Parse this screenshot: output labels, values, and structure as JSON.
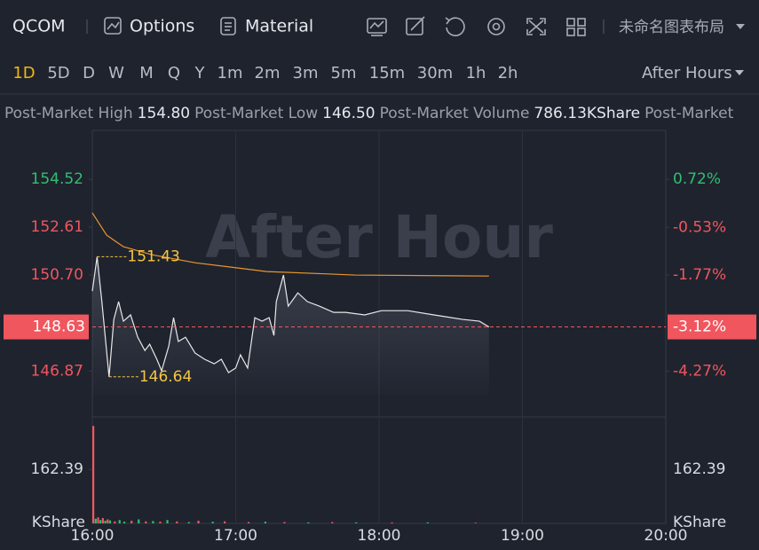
{
  "toolbar": {
    "symbol": "QCOM",
    "options": "Options",
    "material": "Material",
    "layout": "未命名图表布局"
  },
  "timeframes": {
    "items": [
      "1D",
      "5D",
      "D",
      "W",
      "M",
      "Q",
      "Y",
      "1m",
      "2m",
      "3m",
      "5m",
      "15m",
      "30m",
      "1h",
      "2h"
    ],
    "active": "1D",
    "session": "After Hours"
  },
  "stats": [
    {
      "label": "Post-Market High",
      "value": "154.80"
    },
    {
      "label": "Post-Market Low",
      "value": "146.50"
    },
    {
      "label": "Post-Market Volume",
      "value": "786.13KShare"
    },
    {
      "label": "Post-Market"
    }
  ],
  "chart_data": {
    "type": "line",
    "watermark": "After Hour",
    "xlim": [
      "16:00",
      "20:00"
    ],
    "xticks": [
      "16:00",
      "17:00",
      "18:00",
      "19:00",
      "20:00"
    ],
    "ylim": [
      145.04,
      156.47
    ],
    "yticks": [
      {
        "value": 146.87,
        "label": "146.87"
      },
      {
        "value": 150.7,
        "label": "150.70"
      },
      152.61,
      154.52
    ],
    "y2lim": [
      -5.46,
      1.99
    ],
    "y2ticks": [
      {
        "value": -4.27,
        "label": "-4.27%"
      },
      {
        "value": -1.77,
        "label": "-1.77%"
      },
      {
        "value": -0.53,
        "label": "-0.53%"
      },
      {
        "value": 0.72,
        "label": "0.72%"
      }
    ],
    "last_price": {
      "value": 148.63,
      "label": "148.63"
    },
    "last_change": {
      "value": -3.12,
      "label": "-3.12%"
    },
    "up_color": "#2fbf71",
    "down_color": "#f0565e",
    "grid": true,
    "series": [
      {
        "color": "#e8e8e8",
        "area": true,
        "x": [
          "16:00",
          "16:02",
          "16:04",
          "16:07",
          "16:09",
          "16:11",
          "16:13",
          "16:16",
          "16:19",
          "16:22",
          "16:24",
          "16:27",
          "16:29",
          "16:32",
          "16:34",
          "16:36",
          "16:39",
          "16:43",
          "16:47",
          "16:51",
          "16:54",
          "16:57",
          "17:00",
          "17:02",
          "17:05",
          "17:08",
          "17:11",
          "17:14",
          "17:16",
          "17:17",
          "17:20",
          "17:22",
          "17:26",
          "17:30",
          "17:35",
          "17:41",
          "17:46",
          "17:54",
          "18:01",
          "18:12",
          "18:23",
          "18:35",
          "18:42",
          "18:46"
        ],
        "values": [
          150.06,
          151.43,
          149.64,
          146.64,
          148.93,
          149.64,
          148.86,
          149.11,
          148.22,
          147.69,
          147.94,
          147.34,
          146.88,
          147.87,
          149.0,
          148.05,
          148.22,
          147.59,
          147.34,
          147.16,
          147.34,
          146.81,
          146.99,
          147.52,
          146.99,
          149.0,
          148.86,
          149.0,
          148.29,
          149.64,
          150.7,
          149.46,
          149.99,
          149.64,
          149.46,
          149.21,
          149.21,
          149.11,
          149.28,
          149.28,
          149.11,
          148.93,
          148.86,
          148.63
        ]
      },
      {
        "color": "#e8962e",
        "x": [
          "16:00",
          "16:06",
          "16:13",
          "16:25",
          "16:43",
          "17:13",
          "17:50",
          "18:46"
        ],
        "values": [
          153.18,
          152.29,
          151.83,
          151.51,
          151.19,
          150.84,
          150.7,
          150.66
        ]
      }
    ],
    "annotations": [
      {
        "x": "16:02",
        "value": 151.43,
        "label": "151.43",
        "color": "#f5c542"
      },
      {
        "x": "16:07",
        "value": 146.64,
        "label": "146.64",
        "color": "#f5c542"
      }
    ],
    "volume": {
      "unit": "KShare",
      "ylim": [
        0,
        320
      ],
      "yticks": [
        162.39
      ],
      "x": [
        "16:00",
        "16:01",
        "16:02",
        "16:03",
        "16:04",
        "16:05",
        "16:06",
        "16:07",
        "16:09",
        "16:11",
        "16:13",
        "16:16",
        "16:19",
        "16:22",
        "16:25",
        "16:28",
        "16:31",
        "16:35",
        "16:40",
        "16:44",
        "16:50",
        "16:55",
        "17:05",
        "17:12",
        "17:20",
        "17:30",
        "17:40",
        "17:50",
        "18:05",
        "18:20",
        "18:40"
      ],
      "values": [
        293,
        14,
        18,
        10,
        16,
        8,
        12,
        9,
        6,
        10,
        5,
        8,
        12,
        6,
        7,
        5,
        10,
        6,
        4,
        8,
        5,
        6,
        4,
        5,
        4,
        3,
        4,
        3,
        3,
        3,
        2
      ],
      "colors": [
        "#f0565e",
        "#2fbf71",
        "#f0565e",
        "#2fbf71",
        "#f0565e",
        "#2fbf71",
        "#f0565e",
        "#2fbf71",
        "#f0565e",
        "#2fbf71",
        "#2fbf71",
        "#f0565e",
        "#2fbf71",
        "#f0565e",
        "#2fbf71",
        "#f0565e",
        "#2fbf71",
        "#f0565e",
        "#2fbf71",
        "#f0565e",
        "#2fbf71",
        "#f0565e",
        "#f0565e",
        "#2fbf71",
        "#f0565e",
        "#2fbf71",
        "#f0565e",
        "#2fbf71",
        "#f0565e",
        "#2fbf71",
        "#f0565e"
      ]
    }
  }
}
